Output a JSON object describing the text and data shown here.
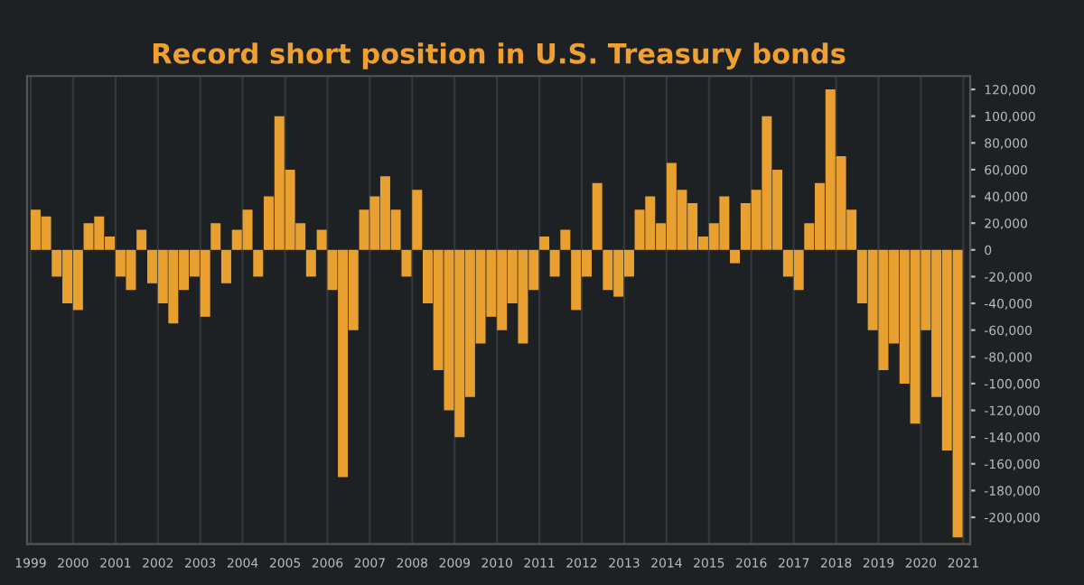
{
  "chart_data": {
    "type": "bar",
    "title": "Record short position in U.S. Treasury bonds",
    "x": [
      "1999-01",
      "1999-04",
      "1999-07",
      "1999-10",
      "2000-01",
      "2000-04",
      "2000-07",
      "2000-10",
      "2001-01",
      "2001-04",
      "2001-07",
      "2001-10",
      "2002-01",
      "2002-04",
      "2002-07",
      "2002-10",
      "2003-01",
      "2003-04",
      "2003-07",
      "2003-10",
      "2004-01",
      "2004-04",
      "2004-07",
      "2004-10",
      "2005-01",
      "2005-04",
      "2005-07",
      "2005-10",
      "2006-01",
      "2006-04",
      "2006-07",
      "2006-10",
      "2007-01",
      "2007-04",
      "2007-07",
      "2007-10",
      "2008-01",
      "2008-04",
      "2008-07",
      "2008-10",
      "2009-01",
      "2009-04",
      "2009-07",
      "2009-10",
      "2010-01",
      "2010-04",
      "2010-07",
      "2010-10",
      "2011-01",
      "2011-04",
      "2011-07",
      "2011-10",
      "2012-01",
      "2012-04",
      "2012-07",
      "2012-10",
      "2013-01",
      "2013-04",
      "2013-07",
      "2013-10",
      "2014-01",
      "2014-04",
      "2014-07",
      "2014-10",
      "2015-01",
      "2015-04",
      "2015-07",
      "2015-10",
      "2016-01",
      "2016-04",
      "2016-07",
      "2016-10",
      "2017-01",
      "2017-04",
      "2017-07",
      "2017-10",
      "2018-01",
      "2018-04",
      "2018-07",
      "2018-10",
      "2019-01",
      "2019-04",
      "2019-07",
      "2019-10",
      "2020-01",
      "2020-04",
      "2020-07",
      "2020-10"
    ],
    "values": [
      30000,
      25000,
      -20000,
      -40000,
      -45000,
      20000,
      25000,
      10000,
      -20000,
      -30000,
      15000,
      -25000,
      -40000,
      -55000,
      -30000,
      -20000,
      -50000,
      20000,
      -25000,
      15000,
      30000,
      -20000,
      40000,
      100000,
      60000,
      20000,
      -20000,
      15000,
      -30000,
      -170000,
      -60000,
      30000,
      40000,
      55000,
      30000,
      -20000,
      45000,
      -40000,
      -90000,
      -120000,
      -140000,
      -110000,
      -70000,
      -50000,
      -60000,
      -40000,
      -70000,
      -30000,
      10000,
      -20000,
      15000,
      -45000,
      -20000,
      50000,
      -30000,
      -35000,
      -20000,
      30000,
      40000,
      20000,
      65000,
      45000,
      35000,
      10000,
      20000,
      40000,
      -10000,
      35000,
      45000,
      100000,
      60000,
      -20000,
      -30000,
      20000,
      50000,
      120000,
      70000,
      30000,
      -40000,
      -60000,
      -90000,
      -70000,
      -100000,
      -130000,
      -60000,
      -110000,
      -150000,
      -215000
    ],
    "color": "#e8a030",
    "xlim": [
      "1998-12",
      "2021-03"
    ],
    "xticks": [
      "1999",
      "2000",
      "2001",
      "2002",
      "2003",
      "2004",
      "2005",
      "2006",
      "2007",
      "2008",
      "2009",
      "2010",
      "2011",
      "2012",
      "2013",
      "2014",
      "2015",
      "2016",
      "2017",
      "2018",
      "2019",
      "2020",
      "2021"
    ],
    "ylim": [
      -220000,
      130000
    ],
    "yticks": [
      {
        "value": 120000,
        "label": "120,000"
      },
      {
        "value": 100000,
        "label": "100,000"
      },
      {
        "value": 80000,
        "label": "80,000"
      },
      {
        "value": 60000,
        "label": "60,000"
      },
      {
        "value": 40000,
        "label": "40,000"
      },
      {
        "value": 20000,
        "label": "20,000"
      },
      0,
      {
        "value": -20000,
        "label": "-20,000"
      },
      {
        "value": -40000,
        "label": "-40,000"
      },
      {
        "value": -60000,
        "label": "-60,000"
      },
      {
        "value": -80000,
        "label": "-80,000"
      },
      {
        "value": -100000,
        "label": "-100,000"
      },
      {
        "value": -120000,
        "label": "-120,000"
      },
      {
        "value": -140000,
        "label": "-140,000"
      },
      {
        "value": -160000,
        "label": "-160,000"
      },
      {
        "value": -180000,
        "label": "-180,000"
      },
      {
        "value": -200000,
        "label": "-200,000"
      }
    ],
    "grid": "x"
  }
}
